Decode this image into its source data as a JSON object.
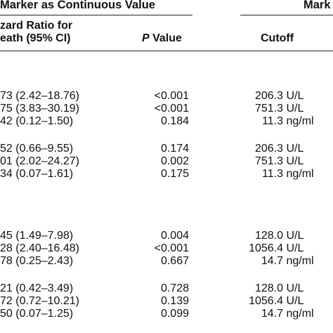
{
  "header": {
    "group_left": "Marker as Continuous Value",
    "group_right": "Mark",
    "col_hr_line1": "zard Ratio for",
    "col_hr_line2": "eath (95% CI)",
    "col_p_italic": "P",
    "col_p_rest": " Value",
    "col_cutoff": "Cutoff"
  },
  "groups": [
    {
      "rows": [
        {
          "hr": "73 (2.42–18.76)",
          "p": "<0.001",
          "cutoff": "206.3 U/L"
        },
        {
          "hr": "75 (3.83–30.19)",
          "p": "<0.001",
          "cutoff": "751.3 U/L"
        },
        {
          "hr": "42 (0.12–1.50)",
          "p": "0.184",
          "cutoff": "11.3 ng/ml"
        }
      ]
    },
    {
      "rows": [
        {
          "hr": "52 (0.66–9.55)",
          "p": "0.174",
          "cutoff": "206.3 U/L"
        },
        {
          "hr": "01 (2.02–24.27)",
          "p": "0.002",
          "cutoff": "751.3 U/L"
        },
        {
          "hr": "34 (0.07–1.61)",
          "p": "0.175",
          "cutoff": "11.3 ng/ml"
        }
      ]
    },
    {
      "rows": [
        {
          "hr": "45 (1.49–7.98)",
          "p": "0.004",
          "cutoff": "128.0 U/L"
        },
        {
          "hr": "28 (2.40–16.48)",
          "p": "<0.001",
          "cutoff": "1056.4 U/L"
        },
        {
          "hr": "78 (0.25–2.43)",
          "p": "0.667",
          "cutoff": "14.7 ng/ml"
        }
      ]
    },
    {
      "rows": [
        {
          "hr": "21 (0.42–3.49)",
          "p": "0.728",
          "cutoff": "128.0 U/L"
        },
        {
          "hr": "72 (0.72–10.21)",
          "p": "0.139",
          "cutoff": "1056.4 U/L"
        },
        {
          "hr": "50 (0.07–1.25)",
          "p": "0.099",
          "cutoff": "14.7 ng/ml"
        }
      ]
    }
  ]
}
